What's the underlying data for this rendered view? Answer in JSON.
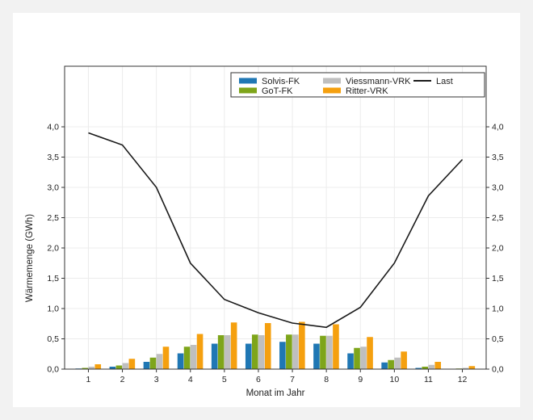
{
  "chart_data": {
    "type": "bar",
    "xlabel": "Monat im Jahr",
    "ylabel": "Wärmemenge (GWh)",
    "ylim": [
      0,
      5.0
    ],
    "yticks": [
      "0,0",
      "0,5",
      "1,0",
      "1,5",
      "2,0",
      "2,5",
      "3,0",
      "3,5",
      "4,0"
    ],
    "categories": [
      "1",
      "2",
      "3",
      "4",
      "5",
      "6",
      "7",
      "8",
      "9",
      "10",
      "11",
      "12"
    ],
    "grid": true,
    "legend_position": "top-right",
    "series": [
      {
        "name": "Solvis-FK",
        "kind": "bar",
        "color": "#1f77b4",
        "values": [
          0.01,
          0.04,
          0.12,
          0.26,
          0.42,
          0.42,
          0.45,
          0.42,
          0.26,
          0.11,
          0.02,
          0.0
        ]
      },
      {
        "name": "GoT-FK",
        "kind": "bar",
        "color": "#7ea51a",
        "values": [
          0.02,
          0.06,
          0.19,
          0.37,
          0.56,
          0.57,
          0.57,
          0.55,
          0.35,
          0.15,
          0.04,
          0.01
        ]
      },
      {
        "name": "Viessmann-VRK",
        "kind": "bar",
        "color": "#bfbfbf",
        "values": [
          0.04,
          0.1,
          0.25,
          0.4,
          0.56,
          0.56,
          0.57,
          0.55,
          0.37,
          0.19,
          0.07,
          0.02
        ]
      },
      {
        "name": "Ritter-VRK",
        "kind": "bar",
        "color": "#f5a00f",
        "values": [
          0.08,
          0.17,
          0.37,
          0.58,
          0.77,
          0.76,
          0.78,
          0.74,
          0.53,
          0.29,
          0.12,
          0.05
        ]
      },
      {
        "name": "Last",
        "kind": "line",
        "color": "#1a1a1a",
        "values": [
          3.9,
          3.7,
          3.0,
          1.75,
          1.15,
          0.93,
          0.76,
          0.69,
          1.02,
          1.75,
          2.86,
          3.46
        ]
      }
    ]
  }
}
